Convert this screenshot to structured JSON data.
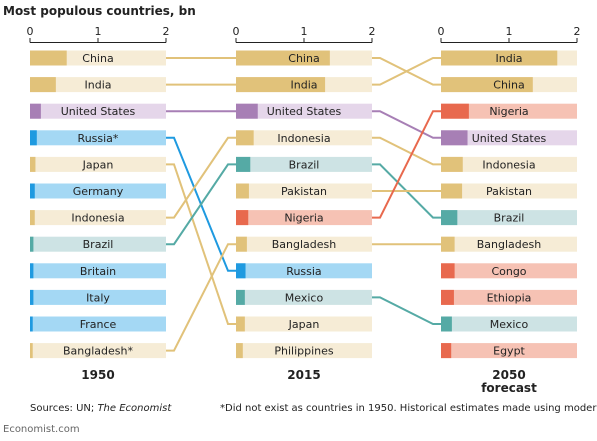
{
  "title": "Most populous countries, bn",
  "source_prefix": "Sources: UN; ",
  "source_italic": "The Economist",
  "footnote": "*Did not exist as countries in 1950. Historical estimates made using modern borders",
  "brand": "Economist.com",
  "colors": {
    "china": "#e1c27a",
    "china_bg": "#f6ecd6",
    "us": "#a77fb5",
    "us_bg": "#e5d6ea",
    "russia": "#1f9ae0",
    "russia_bg": "#a4d8f4",
    "brazil": "#55aaa5",
    "brazil_bg": "#cde3e4",
    "nigeria": "#e8694e",
    "nigeria_bg": "#f6c2b4",
    "axis": "#222222",
    "text": "#222222"
  },
  "chart_data": {
    "type": "bar",
    "xlim": [
      0,
      2
    ],
    "xticks": [
      "0",
      "1",
      "2"
    ],
    "panels": [
      {
        "label": "1950",
        "sublabel": "",
        "bars": [
          {
            "country": "China",
            "label": "China",
            "value": 0.54,
            "cat": "china"
          },
          {
            "country": "India",
            "label": "India",
            "value": 0.38,
            "cat": "china"
          },
          {
            "country": "United States",
            "label": "United States",
            "value": 0.16,
            "cat": "us"
          },
          {
            "country": "Russia",
            "label": "Russia*",
            "value": 0.1,
            "cat": "russia"
          },
          {
            "country": "Japan",
            "label": "Japan",
            "value": 0.08,
            "cat": "china"
          },
          {
            "country": "Germany",
            "label": "Germany",
            "value": 0.07,
            "cat": "russia"
          },
          {
            "country": "Indonesia",
            "label": "Indonesia",
            "value": 0.07,
            "cat": "china"
          },
          {
            "country": "Brazil",
            "label": "Brazil",
            "value": 0.05,
            "cat": "brazil"
          },
          {
            "country": "Britain",
            "label": "Britain",
            "value": 0.05,
            "cat": "russia"
          },
          {
            "country": "Italy",
            "label": "Italy",
            "value": 0.05,
            "cat": "russia"
          },
          {
            "country": "France",
            "label": "France",
            "value": 0.04,
            "cat": "russia"
          },
          {
            "country": "Bangladesh",
            "label": "Bangladesh*",
            "value": 0.04,
            "cat": "china"
          }
        ]
      },
      {
        "label": "2015",
        "sublabel": "",
        "bars": [
          {
            "country": "China",
            "label": "China",
            "value": 1.38,
            "cat": "china"
          },
          {
            "country": "India",
            "label": "India",
            "value": 1.31,
            "cat": "china"
          },
          {
            "country": "United States",
            "label": "United States",
            "value": 0.32,
            "cat": "us"
          },
          {
            "country": "Indonesia",
            "label": "Indonesia",
            "value": 0.26,
            "cat": "china"
          },
          {
            "country": "Brazil",
            "label": "Brazil",
            "value": 0.21,
            "cat": "brazil"
          },
          {
            "country": "Pakistan",
            "label": "Pakistan",
            "value": 0.19,
            "cat": "china"
          },
          {
            "country": "Nigeria",
            "label": "Nigeria",
            "value": 0.18,
            "cat": "nigeria"
          },
          {
            "country": "Bangladesh",
            "label": "Bangladesh",
            "value": 0.16,
            "cat": "china"
          },
          {
            "country": "Russia",
            "label": "Russia",
            "value": 0.14,
            "cat": "russia"
          },
          {
            "country": "Mexico",
            "label": "Mexico",
            "value": 0.13,
            "cat": "brazil"
          },
          {
            "country": "Japan",
            "label": "Japan",
            "value": 0.13,
            "cat": "china"
          },
          {
            "country": "Philippines",
            "label": "Philippines",
            "value": 0.1,
            "cat": "china"
          }
        ]
      },
      {
        "label": "2050",
        "sublabel": "forecast",
        "bars": [
          {
            "country": "India",
            "label": "India",
            "value": 1.71,
            "cat": "china"
          },
          {
            "country": "China",
            "label": "China",
            "value": 1.35,
            "cat": "china"
          },
          {
            "country": "Nigeria",
            "label": "Nigeria",
            "value": 0.41,
            "cat": "nigeria"
          },
          {
            "country": "United States",
            "label": "United States",
            "value": 0.39,
            "cat": "us"
          },
          {
            "country": "Indonesia",
            "label": "Indonesia",
            "value": 0.32,
            "cat": "china"
          },
          {
            "country": "Pakistan",
            "label": "Pakistan",
            "value": 0.31,
            "cat": "china"
          },
          {
            "country": "Brazil",
            "label": "Brazil",
            "value": 0.24,
            "cat": "brazil"
          },
          {
            "country": "Bangladesh",
            "label": "Bangladesh",
            "value": 0.2,
            "cat": "china"
          },
          {
            "country": "Congo",
            "label": "Congo",
            "value": 0.2,
            "cat": "nigeria"
          },
          {
            "country": "Ethiopia",
            "label": "Ethiopia",
            "value": 0.19,
            "cat": "nigeria"
          },
          {
            "country": "Mexico",
            "label": "Mexico",
            "value": 0.16,
            "cat": "brazil"
          },
          {
            "country": "Egypt",
            "label": "Egypt",
            "value": 0.15,
            "cat": "nigeria"
          }
        ]
      }
    ]
  }
}
